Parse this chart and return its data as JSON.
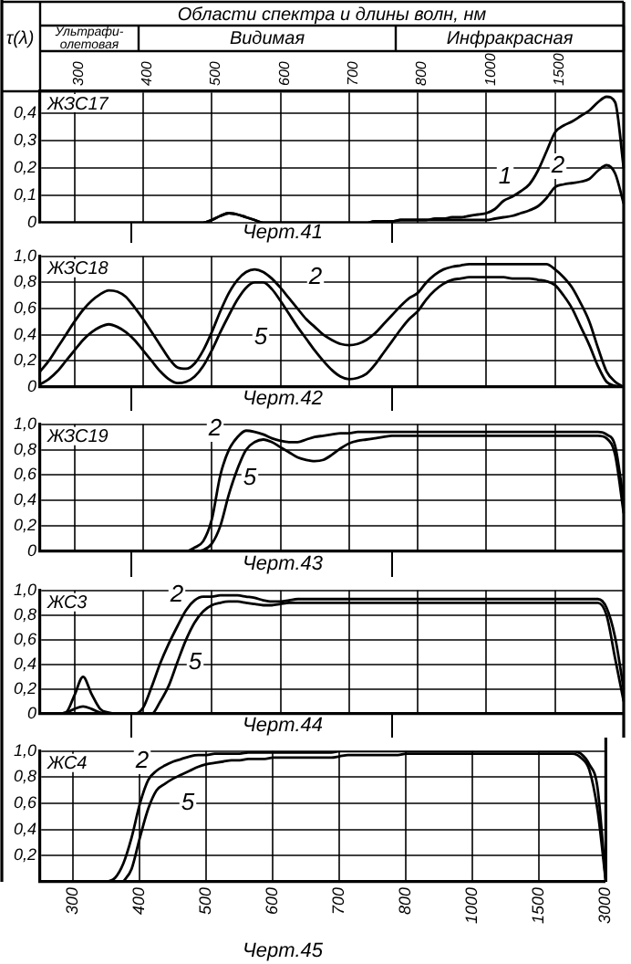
{
  "chart_data": [
    {
      "type": "line",
      "title": "ЖЗС17",
      "ylabel": "τ(λ)",
      "xlabel": "Области спектра и длины волн, нм",
      "annotations": [
        "Ультрафи-олетовая",
        "Видимая",
        "Инфракрасная",
        "Черт.41"
      ],
      "categories": [
        null,
        null,
        null,
        null,
        "300",
        null,
        null,
        null,
        null,
        null,
        null,
        null,
        "400",
        null,
        null,
        null,
        null,
        null,
        null,
        null,
        "500",
        null,
        null,
        null,
        null,
        null,
        null,
        null,
        "600",
        null,
        null,
        null,
        null,
        null,
        null,
        null,
        "700",
        null,
        null,
        null,
        null,
        null,
        null,
        null,
        "800",
        null,
        null,
        null,
        null,
        null,
        null,
        null,
        "1000",
        null,
        null,
        null,
        null,
        null,
        null,
        null,
        "1500",
        null,
        null,
        null,
        null,
        null,
        null,
        null,
        null
      ],
      "ylim": [
        0,
        0.48
      ],
      "yticks": [
        {
          "value": 0,
          "label": "0"
        },
        {
          "value": 0.1,
          "label": "0,1"
        },
        {
          "value": 0.2,
          "label": "0,2"
        },
        {
          "value": 0.3,
          "label": "0,3"
        },
        {
          "value": 0.4,
          "label": "0,4"
        }
      ],
      "grid": true,
      "series": [
        {
          "name": "1",
          "color": "#000000",
          "values": [
            0,
            0,
            0,
            0,
            0,
            0,
            0,
            0,
            0,
            0,
            0,
            0,
            0,
            0,
            0,
            0,
            0,
            0,
            0,
            0,
            0.01,
            0.025,
            0.035,
            0.03,
            0.02,
            0.01,
            0,
            0,
            0,
            0,
            0,
            0,
            0,
            0,
            0,
            0,
            0,
            0,
            0,
            0.005,
            0.005,
            0.005,
            0.01,
            0.01,
            0.01,
            0.01,
            0.015,
            0.015,
            0.02,
            0.02,
            0.025,
            0.03,
            0.035,
            0.05,
            0.08,
            0.095,
            0.115,
            0.14,
            0.19,
            0.26,
            0.33,
            0.355,
            0.37,
            0.39,
            0.41,
            0.44,
            0.46,
            0.44,
            0.2
          ]
        },
        {
          "name": "2",
          "color": "#000000",
          "values": [
            0,
            0,
            0,
            0,
            0,
            0,
            0,
            0,
            0,
            0,
            0,
            0,
            0,
            0,
            0,
            0,
            0,
            0,
            0,
            0,
            0.01,
            0.025,
            0.035,
            0.03,
            0.02,
            0.01,
            0,
            0,
            0,
            0,
            0,
            0,
            0,
            0,
            0,
            0,
            0,
            0,
            0,
            0.005,
            0.005,
            0.005,
            0.01,
            0.01,
            0.01,
            0.01,
            0.01,
            0.01,
            0.01,
            0.01,
            0.01,
            0.01,
            0.01,
            0.015,
            0.02,
            0.025,
            0.035,
            0.045,
            0.06,
            0.09,
            0.13,
            0.14,
            0.145,
            0.15,
            0.16,
            0.19,
            0.21,
            0.18,
            0.07
          ]
        }
      ]
    },
    {
      "type": "line",
      "title": "ЖЗС18",
      "annotations": [
        "Черт.42"
      ],
      "categories": [
        null,
        null,
        null,
        null,
        "300",
        null,
        null,
        null,
        null,
        null,
        null,
        null,
        "400",
        null,
        null,
        null,
        null,
        null,
        null,
        null,
        "500",
        null,
        null,
        null,
        null,
        null,
        null,
        null,
        "600",
        null,
        null,
        null,
        null,
        null,
        null,
        null,
        "700",
        null,
        null,
        null,
        null,
        null,
        null,
        null,
        "800",
        null,
        null,
        null,
        null,
        null,
        null,
        null,
        "1000",
        null,
        null,
        null,
        null,
        null,
        null,
        null,
        "1500",
        null,
        null,
        null,
        null,
        null,
        null,
        null,
        "3000"
      ],
      "ylim": [
        0,
        1
      ],
      "yticks": [
        {
          "value": 0,
          "label": "0"
        },
        {
          "value": 0.2,
          "label": "0,2"
        },
        {
          "value": 0.4,
          "label": "0,4"
        },
        {
          "value": 0.6,
          "label": "0,6"
        },
        {
          "value": 0.8,
          "label": "0,8"
        },
        {
          "value": 1,
          "label": "1,0"
        }
      ],
      "grid": true,
      "tick_labels": "y",
      "series": [
        {
          "name": "2",
          "color": "#000000",
          "values": [
            0.12,
            0.2,
            0.3,
            0.4,
            0.5,
            0.59,
            0.66,
            0.71,
            0.74,
            0.73,
            0.69,
            0.61,
            0.52,
            0.42,
            0.32,
            0.22,
            0.15,
            0.14,
            0.18,
            0.28,
            0.42,
            0.58,
            0.72,
            0.82,
            0.88,
            0.9,
            0.88,
            0.83,
            0.76,
            0.68,
            0.6,
            0.52,
            0.46,
            0.4,
            0.36,
            0.33,
            0.32,
            0.33,
            0.36,
            0.41,
            0.48,
            0.55,
            0.62,
            0.68,
            0.72,
            0.8,
            0.86,
            0.9,
            0.92,
            0.93,
            0.94,
            0.94,
            0.94,
            0.94,
            0.94,
            0.94,
            0.94,
            0.94,
            0.94,
            0.94,
            0.9,
            0.84,
            0.76,
            0.64,
            0.5,
            0.3,
            0.12,
            0.04,
            0
          ]
        },
        {
          "name": "5",
          "color": "#000000",
          "values": [
            0.02,
            0.06,
            0.12,
            0.2,
            0.28,
            0.36,
            0.42,
            0.46,
            0.48,
            0.46,
            0.42,
            0.36,
            0.28,
            0.2,
            0.12,
            0.06,
            0.03,
            0.04,
            0.08,
            0.16,
            0.28,
            0.42,
            0.55,
            0.67,
            0.76,
            0.8,
            0.8,
            0.75,
            0.66,
            0.56,
            0.46,
            0.37,
            0.28,
            0.2,
            0.13,
            0.08,
            0.06,
            0.07,
            0.1,
            0.17,
            0.26,
            0.35,
            0.44,
            0.52,
            0.58,
            0.67,
            0.74,
            0.79,
            0.82,
            0.83,
            0.84,
            0.84,
            0.84,
            0.84,
            0.84,
            0.83,
            0.83,
            0.83,
            0.82,
            0.81,
            0.78,
            0.7,
            0.6,
            0.46,
            0.32,
            0.16,
            0.04,
            0.01,
            0
          ]
        }
      ]
    },
    {
      "type": "line",
      "title": "ЖЗС19",
      "annotations": [
        "Черт.43"
      ],
      "categories": [
        null,
        null,
        null,
        null,
        "300",
        null,
        null,
        null,
        null,
        null,
        null,
        null,
        "400",
        null,
        null,
        null,
        null,
        null,
        null,
        null,
        "500",
        null,
        null,
        null,
        null,
        null,
        null,
        null,
        "600",
        null,
        null,
        null,
        null,
        null,
        null,
        null,
        "700",
        null,
        null,
        null,
        null,
        null,
        null,
        null,
        "800",
        null,
        null,
        null,
        null,
        null,
        null,
        null,
        "1000",
        null,
        null,
        null,
        null,
        null,
        null,
        null,
        "1500",
        null,
        null,
        null,
        null,
        null,
        null,
        null,
        "3000"
      ],
      "ylim": [
        0,
        1
      ],
      "yticks": [
        {
          "value": 0,
          "label": "0"
        },
        {
          "value": 0.2,
          "label": "0,2"
        },
        {
          "value": 0.4,
          "label": "0,4"
        },
        {
          "value": 0.6,
          "label": "0,6"
        },
        {
          "value": 0.8,
          "label": "0,8"
        },
        {
          "value": 1,
          "label": "1,0"
        }
      ],
      "grid": true,
      "tick_labels": "y",
      "series": [
        {
          "name": "2",
          "color": "#000000",
          "values": [
            0,
            0,
            0,
            0,
            0,
            0,
            0,
            0,
            0,
            0,
            0,
            0,
            0,
            0,
            0,
            0,
            0,
            0,
            0.03,
            0.08,
            0.25,
            0.6,
            0.8,
            0.9,
            0.95,
            0.94,
            0.92,
            0.89,
            0.87,
            0.86,
            0.86,
            0.88,
            0.9,
            0.91,
            0.92,
            0.93,
            0.93,
            0.94,
            0.94,
            0.94,
            0.94,
            0.94,
            0.94,
            0.94,
            0.94,
            0.94,
            0.94,
            0.94,
            0.94,
            0.94,
            0.94,
            0.94,
            0.94,
            0.94,
            0.94,
            0.94,
            0.94,
            0.94,
            0.94,
            0.94,
            0.94,
            0.94,
            0.94,
            0.94,
            0.94,
            0.94,
            0.92,
            0.83,
            0.4
          ]
        },
        {
          "name": "5",
          "color": "#000000",
          "values": [
            0,
            0,
            0,
            0,
            0,
            0,
            0,
            0,
            0,
            0,
            0,
            0,
            0,
            0,
            0,
            0,
            0,
            0,
            0,
            0.01,
            0.06,
            0.2,
            0.45,
            0.65,
            0.8,
            0.86,
            0.88,
            0.86,
            0.82,
            0.78,
            0.74,
            0.72,
            0.71,
            0.72,
            0.76,
            0.81,
            0.85,
            0.87,
            0.88,
            0.89,
            0.9,
            0.91,
            0.91,
            0.91,
            0.91,
            0.91,
            0.91,
            0.91,
            0.91,
            0.91,
            0.91,
            0.91,
            0.91,
            0.91,
            0.91,
            0.91,
            0.91,
            0.91,
            0.91,
            0.91,
            0.91,
            0.91,
            0.91,
            0.91,
            0.91,
            0.91,
            0.89,
            0.76,
            0.3
          ]
        }
      ]
    },
    {
      "type": "line",
      "title": "ЖС3",
      "annotations": [
        "Черт.44"
      ],
      "categories": [
        null,
        null,
        null,
        null,
        "300",
        null,
        null,
        null,
        null,
        null,
        null,
        null,
        "400",
        null,
        null,
        null,
        null,
        null,
        null,
        null,
        "500",
        null,
        null,
        null,
        null,
        null,
        null,
        null,
        "600",
        null,
        null,
        null,
        null,
        null,
        null,
        null,
        "700",
        null,
        null,
        null,
        null,
        null,
        null,
        null,
        "800",
        null,
        null,
        null,
        null,
        null,
        null,
        null,
        "1000",
        null,
        null,
        null,
        null,
        null,
        null,
        null,
        "1500",
        null,
        null,
        null,
        null,
        null,
        null,
        null,
        "3000"
      ],
      "ylim": [
        0,
        1
      ],
      "yticks": [
        {
          "value": 0,
          "label": "0"
        },
        {
          "value": 0.2,
          "label": "0,2"
        },
        {
          "value": 0.4,
          "label": "0,4"
        },
        {
          "value": 0.6,
          "label": "0,6"
        },
        {
          "value": 0.8,
          "label": "0,8"
        },
        {
          "value": 1,
          "label": "1,0"
        }
      ],
      "grid": true,
      "tick_labels": "y",
      "series": [
        {
          "name": "2",
          "color": "#000000",
          "values": [
            0,
            0,
            0,
            0.01,
            0.15,
            0.3,
            0.16,
            0.04,
            0.01,
            0,
            0,
            0,
            0.05,
            0.22,
            0.41,
            0.57,
            0.71,
            0.84,
            0.92,
            0.95,
            0.95,
            0.96,
            0.96,
            0.96,
            0.95,
            0.94,
            0.92,
            0.91,
            0.91,
            0.92,
            0.93,
            0.93,
            0.93,
            0.93,
            0.93,
            0.93,
            0.93,
            0.93,
            0.93,
            0.93,
            0.93,
            0.93,
            0.93,
            0.93,
            0.93,
            0.93,
            0.93,
            0.93,
            0.93,
            0.93,
            0.93,
            0.93,
            0.93,
            0.93,
            0.93,
            0.93,
            0.93,
            0.93,
            0.93,
            0.93,
            0.93,
            0.93,
            0.93,
            0.93,
            0.93,
            0.93,
            0.86,
            0.62,
            0.2
          ]
        },
        {
          "name": "5",
          "color": "#000000",
          "values": [
            0,
            0,
            0,
            0.01,
            0.04,
            0.06,
            0.04,
            0.01,
            0,
            0,
            0,
            0,
            0,
            0,
            0.1,
            0.23,
            0.42,
            0.6,
            0.74,
            0.83,
            0.88,
            0.9,
            0.91,
            0.91,
            0.9,
            0.89,
            0.88,
            0.88,
            0.89,
            0.9,
            0.9,
            0.9,
            0.9,
            0.9,
            0.9,
            0.9,
            0.9,
            0.9,
            0.9,
            0.9,
            0.9,
            0.9,
            0.9,
            0.9,
            0.9,
            0.9,
            0.9,
            0.9,
            0.9,
            0.9,
            0.9,
            0.9,
            0.9,
            0.9,
            0.9,
            0.9,
            0.9,
            0.9,
            0.9,
            0.9,
            0.9,
            0.9,
            0.9,
            0.9,
            0.9,
            0.9,
            0.8,
            0.45,
            0.1
          ]
        }
      ]
    },
    {
      "type": "line",
      "title": "ЖС4",
      "annotations": [
        "Черт.45"
      ],
      "categories": [
        null,
        null,
        null,
        null,
        "300",
        null,
        null,
        null,
        null,
        null,
        null,
        null,
        "400",
        null,
        null,
        null,
        null,
        null,
        null,
        null,
        "500",
        null,
        null,
        null,
        null,
        null,
        null,
        null,
        "600",
        null,
        null,
        null,
        null,
        null,
        null,
        null,
        "700",
        null,
        null,
        null,
        null,
        null,
        null,
        null,
        "800",
        null,
        null,
        null,
        null,
        null,
        null,
        null,
        "1000",
        null,
        null,
        null,
        null,
        null,
        null,
        null,
        "1500",
        null,
        null,
        null,
        null,
        null,
        null,
        null,
        "3000"
      ],
      "ylim": [
        0,
        1
      ],
      "yticks": [
        {
          "value": 0.2,
          "label": "0,2"
        },
        {
          "value": 0.4,
          "label": "0,4"
        },
        {
          "value": 0.6,
          "label": "0,6"
        },
        {
          "value": 0.8,
          "label": "0,8"
        },
        {
          "value": 1,
          "label": "1,0"
        }
      ],
      "grid": true,
      "series": [
        {
          "name": "2",
          "color": "#000000",
          "values": [
            null,
            null,
            null,
            null,
            null,
            null,
            null,
            null,
            0,
            0.03,
            0.14,
            0.34,
            0.6,
            0.78,
            0.85,
            0.89,
            0.92,
            0.94,
            0.96,
            0.97,
            0.97,
            0.98,
            0.98,
            0.98,
            0.98,
            0.99,
            0.99,
            0.99,
            0.99,
            0.99,
            0.99,
            0.99,
            0.99,
            0.99,
            0.99,
            0.99,
            1,
            1,
            1,
            1,
            1,
            1,
            1,
            1,
            1,
            1,
            1,
            1,
            1,
            1,
            1,
            1,
            1,
            1,
            1,
            1,
            1,
            1,
            1,
            1,
            1,
            1,
            1,
            1,
            1,
            0.98,
            0.9,
            0.72,
            0
          ]
        },
        {
          "name": "5",
          "color": "#000000",
          "values": [
            null,
            null,
            null,
            null,
            null,
            null,
            null,
            null,
            null,
            null,
            0,
            0.1,
            0.34,
            0.56,
            0.7,
            0.75,
            0.79,
            0.82,
            0.85,
            0.88,
            0.9,
            0.91,
            0.92,
            0.93,
            0.93,
            0.94,
            0.94,
            0.94,
            0.95,
            0.95,
            0.95,
            0.95,
            0.95,
            0.95,
            0.95,
            0.95,
            0.96,
            0.97,
            0.97,
            0.97,
            0.97,
            0.97,
            0.97,
            0.97,
            0.98,
            0.98,
            0.98,
            0.98,
            0.98,
            0.98,
            0.98,
            0.98,
            0.98,
            0.98,
            0.98,
            0.98,
            0.98,
            0.98,
            0.98,
            0.98,
            0.98,
            0.98,
            0.98,
            0.98,
            0.98,
            0.95,
            0.86,
            0.55,
            0
          ]
        }
      ]
    }
  ]
}
